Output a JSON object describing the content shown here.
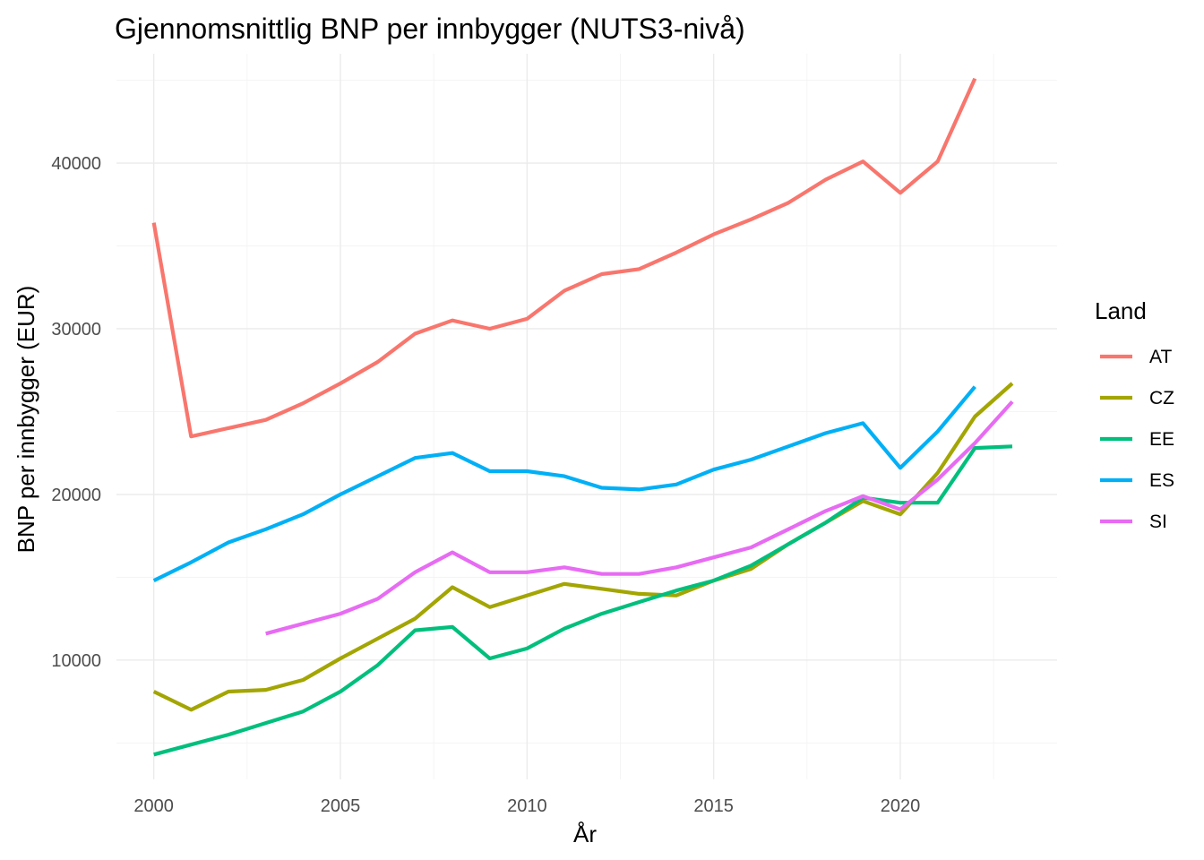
{
  "chart_data": {
    "type": "line",
    "title": "Gjennomsnittlig BNP per innbygger (NUTS3-nivå)",
    "xlabel": "År",
    "ylabel": "BNP per innbygger (EUR)",
    "xlim": [
      1999.0,
      2024.2
    ],
    "ylim": [
      2800,
      46600
    ],
    "x_ticks": [
      2000,
      2005,
      2010,
      2015,
      2020
    ],
    "x_tick_labels": [
      "2000",
      "2005",
      "2010",
      "2015",
      "2020"
    ],
    "y_ticks": [
      10000,
      20000,
      30000,
      40000
    ],
    "y_tick_labels": [
      "10000",
      "20000",
      "30000",
      "40000"
    ],
    "x_minor_ticks": [
      2002.5,
      2007.5,
      2012.5,
      2017.5,
      2022.5
    ],
    "y_minor_ticks": [
      5000,
      15000,
      25000,
      35000,
      45000
    ],
    "grid": true,
    "legend_title": "Land",
    "legend_position": "right",
    "series": [
      {
        "name": "AT",
        "color": "#F8766D",
        "x": [
          2000,
          2001,
          2002,
          2003,
          2004,
          2005,
          2006,
          2007,
          2008,
          2009,
          2010,
          2011,
          2012,
          2013,
          2014,
          2015,
          2016,
          2017,
          2018,
          2019,
          2020,
          2021,
          2022
        ],
        "y": [
          36400,
          23500,
          24000,
          24500,
          25500,
          26700,
          28000,
          29700,
          30500,
          30000,
          30600,
          32300,
          33300,
          33600,
          34600,
          35700,
          36600,
          37600,
          39000,
          40100,
          38200,
          40100,
          45100
        ]
      },
      {
        "name": "CZ",
        "color": "#A3A500",
        "x": [
          2000,
          2001,
          2002,
          2003,
          2004,
          2005,
          2006,
          2007,
          2008,
          2009,
          2010,
          2011,
          2012,
          2013,
          2014,
          2015,
          2016,
          2017,
          2018,
          2019,
          2020,
          2021,
          2022,
          2023
        ],
        "y": [
          8100,
          7000,
          8100,
          8200,
          8800,
          10100,
          11300,
          12500,
          14400,
          13200,
          13900,
          14600,
          14300,
          14000,
          13900,
          14800,
          15500,
          17000,
          18300,
          19600,
          18800,
          21300,
          24700,
          26700
        ]
      },
      {
        "name": "EE",
        "color": "#00BF7D",
        "x": [
          2000,
          2001,
          2002,
          2003,
          2004,
          2005,
          2006,
          2007,
          2008,
          2009,
          2010,
          2011,
          2012,
          2013,
          2014,
          2015,
          2016,
          2017,
          2018,
          2019,
          2020,
          2021,
          2022,
          2023
        ],
        "y": [
          4300,
          4900,
          5500,
          6200,
          6900,
          8100,
          9700,
          11800,
          12000,
          10100,
          10700,
          11900,
          12800,
          13500,
          14200,
          14800,
          15700,
          17000,
          18300,
          19800,
          19500,
          19500,
          22800,
          22900
        ]
      },
      {
        "name": "ES",
        "color": "#00B0F6",
        "x": [
          2000,
          2001,
          2002,
          2003,
          2004,
          2005,
          2006,
          2007,
          2008,
          2009,
          2010,
          2011,
          2012,
          2013,
          2014,
          2015,
          2016,
          2017,
          2018,
          2019,
          2020,
          2021,
          2022
        ],
        "y": [
          14800,
          15900,
          17100,
          17900,
          18800,
          20000,
          21100,
          22200,
          22500,
          21400,
          21400,
          21100,
          20400,
          20300,
          20600,
          21500,
          22100,
          22900,
          23700,
          24300,
          21600,
          23800,
          26500
        ]
      },
      {
        "name": "SI",
        "color": "#E76BF3",
        "x": [
          2003,
          2004,
          2005,
          2006,
          2007,
          2008,
          2009,
          2010,
          2011,
          2012,
          2013,
          2014,
          2015,
          2016,
          2017,
          2018,
          2019,
          2020,
          2021,
          2022,
          2023
        ],
        "y": [
          11600,
          12200,
          12800,
          13700,
          15300,
          16500,
          15300,
          15300,
          15600,
          15200,
          15200,
          15600,
          16200,
          16800,
          17900,
          19000,
          19900,
          19100,
          20900,
          23100,
          25600
        ]
      }
    ]
  }
}
